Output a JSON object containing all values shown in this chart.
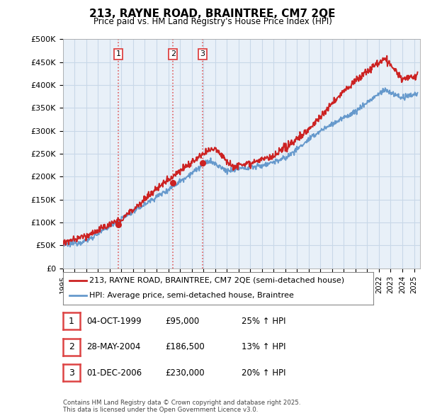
{
  "title": "213, RAYNE ROAD, BRAINTREE, CM7 2QE",
  "subtitle": "Price paid vs. HM Land Registry's House Price Index (HPI)",
  "ylabel_ticks": [
    "£0",
    "£50K",
    "£100K",
    "£150K",
    "£200K",
    "£250K",
    "£300K",
    "£350K",
    "£400K",
    "£450K",
    "£500K"
  ],
  "ytick_values": [
    0,
    50000,
    100000,
    150000,
    200000,
    250000,
    300000,
    350000,
    400000,
    450000,
    500000
  ],
  "ylim": [
    0,
    500000
  ],
  "xlim_start": 1995.0,
  "xlim_end": 2025.5,
  "sale_dates": [
    1999.75,
    2004.42,
    2006.92
  ],
  "sale_prices": [
    95000,
    186500,
    230000
  ],
  "sale_labels": [
    "1",
    "2",
    "3"
  ],
  "vline_color": "#dd4444",
  "red_line_color": "#cc2222",
  "blue_line_color": "#6699cc",
  "plot_bg_color": "#e8f0f8",
  "legend_label_red": "213, RAYNE ROAD, BRAINTREE, CM7 2QE (semi-detached house)",
  "legend_label_blue": "HPI: Average price, semi-detached house, Braintree",
  "table_rows": [
    {
      "num": "1",
      "date": "04-OCT-1999",
      "price": "£95,000",
      "hpi": "25% ↑ HPI"
    },
    {
      "num": "2",
      "date": "28-MAY-2004",
      "price": "£186,500",
      "hpi": "13% ↑ HPI"
    },
    {
      "num": "3",
      "date": "01-DEC-2006",
      "price": "£230,000",
      "hpi": "20% ↑ HPI"
    }
  ],
  "footer": "Contains HM Land Registry data © Crown copyright and database right 2025.\nThis data is licensed under the Open Government Licence v3.0.",
  "background_color": "#ffffff",
  "grid_color": "#c8d8e8"
}
